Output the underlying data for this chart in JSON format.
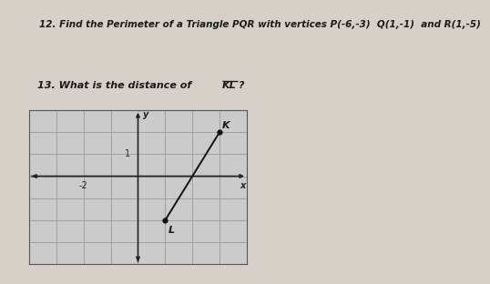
{
  "title_text": "12. Find the Perimeter of a Triangle PQR with vertices P(-6,-3)  Q(1,-1)  and R(1,-5)",
  "bg_color": "#cbcbcb",
  "page_bg": "#d6d0c8",
  "grid_xlim": [
    -4,
    4
  ],
  "grid_ylim": [
    -4,
    3
  ],
  "x_tick_label": "x",
  "y_tick_label": "y",
  "K": [
    3,
    2
  ],
  "L": [
    1,
    -2
  ],
  "grid_color": "#999999",
  "axis_color": "#222222",
  "line_color": "#111111",
  "point_color": "#111111",
  "text_color": "#1a1a1a",
  "label_1": "1",
  "label_neg2": "-2",
  "font_size_title": 7.5,
  "font_size_q2": 8.0,
  "font_size_labels": 7
}
